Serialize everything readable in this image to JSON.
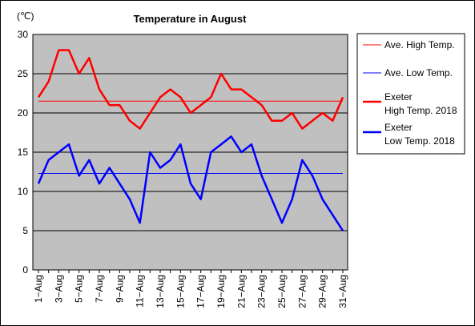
{
  "chart_data": {
    "type": "line",
    "title": "Temperature in August",
    "unit_label": "(℃)",
    "ylim": [
      0,
      30
    ],
    "yticks": [
      0,
      5,
      10,
      15,
      20,
      25,
      30
    ],
    "x": [
      "1−Aug",
      "2−Aug",
      "3−Aug",
      "4−Aug",
      "5−Aug",
      "6−Aug",
      "7−Aug",
      "8−Aug",
      "9−Aug",
      "10−Aug",
      "11−Aug",
      "12−Aug",
      "13−Aug",
      "14−Aug",
      "15−Aug",
      "16−Aug",
      "17−Aug",
      "18−Aug",
      "19−Aug",
      "20−Aug",
      "21−Aug",
      "22−Aug",
      "23−Aug",
      "24−Aug",
      "25−Aug",
      "26−Aug",
      "27−Aug",
      "28−Aug",
      "29−Aug",
      "30−Aug",
      "31−Aug"
    ],
    "xtick_labels": [
      "1−Aug",
      "3−Aug",
      "5−Aug",
      "7−Aug",
      "9−Aug",
      "11−Aug",
      "13−Aug",
      "15−Aug",
      "17−Aug",
      "19−Aug",
      "21−Aug",
      "23−Aug",
      "25−Aug",
      "27−Aug",
      "29−Aug",
      "31−Aug"
    ],
    "grid": true,
    "legend_position": "right",
    "plot_background": "#c0c0c0",
    "series": [
      {
        "name": "Ave. High Temp.",
        "color": "#ff0000",
        "width": 1,
        "values": [
          21.5,
          21.5,
          21.5,
          21.5,
          21.5,
          21.5,
          21.5,
          21.5,
          21.5,
          21.5,
          21.5,
          21.5,
          21.5,
          21.5,
          21.5,
          21.5,
          21.5,
          21.5,
          21.5,
          21.5,
          21.5,
          21.5,
          21.5,
          21.5,
          21.5,
          21.5,
          21.5,
          21.5,
          21.5,
          21.5,
          21.5
        ]
      },
      {
        "name": "Ave. Low Temp.",
        "color": "#0000ff",
        "width": 1,
        "values": [
          12.3,
          12.3,
          12.3,
          12.3,
          12.3,
          12.3,
          12.3,
          12.3,
          12.3,
          12.3,
          12.3,
          12.3,
          12.3,
          12.3,
          12.3,
          12.3,
          12.3,
          12.3,
          12.3,
          12.3,
          12.3,
          12.3,
          12.3,
          12.3,
          12.3,
          12.3,
          12.3,
          12.3,
          12.3,
          12.3,
          12.3
        ]
      },
      {
        "name_lines": [
          "Exeter",
          "High Temp. 2018"
        ],
        "color": "#ff0000",
        "width": 2.5,
        "values": [
          22,
          24,
          28,
          28,
          25,
          27,
          23,
          21,
          21,
          19,
          18,
          20,
          22,
          23,
          22,
          20,
          21,
          22,
          25,
          23,
          23,
          22,
          21,
          19,
          19,
          20,
          18,
          19,
          20,
          19,
          22
        ]
      },
      {
        "name_lines": [
          "Exeter",
          "Low Temp. 2018"
        ],
        "color": "#0000ff",
        "width": 2.5,
        "values": [
          11,
          14,
          15,
          16,
          12,
          14,
          11,
          13,
          11,
          9,
          6,
          15,
          13,
          14,
          16,
          11,
          9,
          15,
          16,
          17,
          15,
          16,
          12,
          9,
          6,
          9,
          14,
          12,
          9,
          7,
          5
        ]
      }
    ]
  }
}
